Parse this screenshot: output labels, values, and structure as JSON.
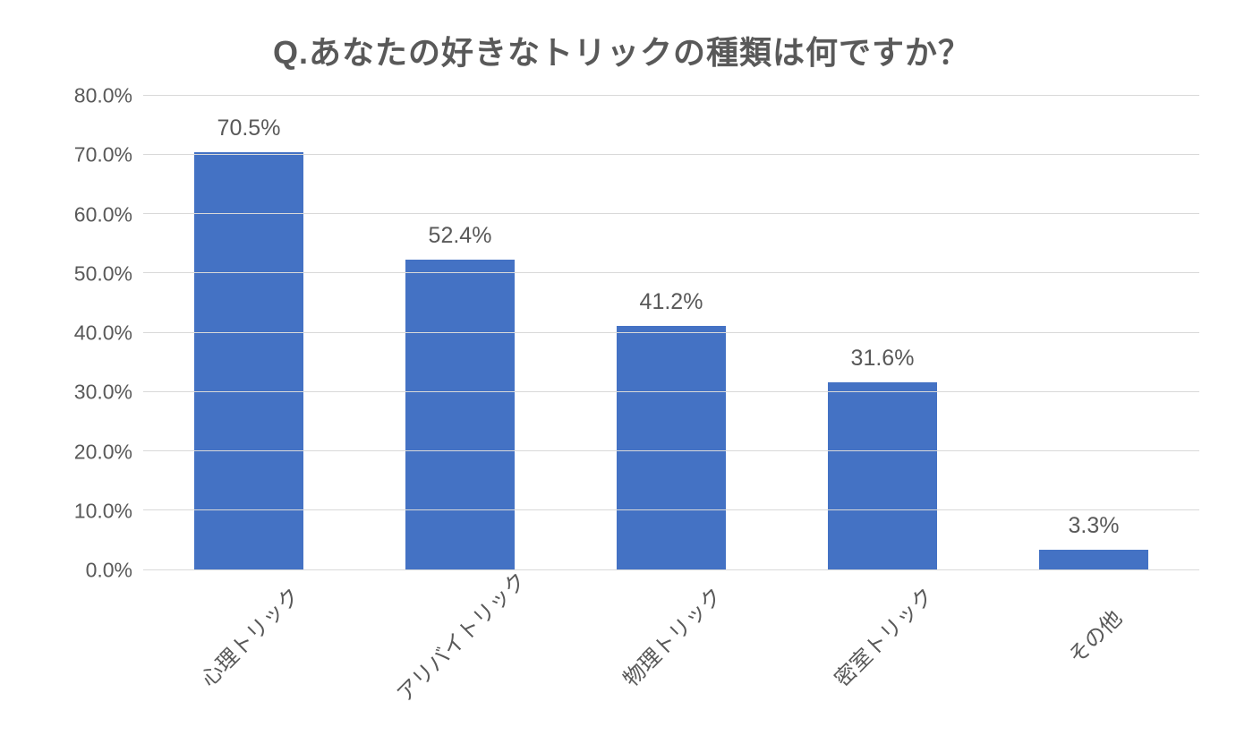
{
  "chart": {
    "type": "bar",
    "title": "Q.あなたの好きなトリックの種類は何ですか？",
    "title_fontsize": 36,
    "title_color": "#595959",
    "categories": [
      "心理トリック",
      "アリバイトリック",
      "物理トリック",
      "密室トリック",
      "その他"
    ],
    "values": [
      70.5,
      52.4,
      41.2,
      31.6,
      3.3
    ],
    "value_labels": [
      "70.5%",
      "52.4%",
      "41.2%",
      "31.6%",
      "3.3%"
    ],
    "bar_color": "#4472c4",
    "ylim": [
      0,
      80
    ],
    "ytick_step": 10,
    "yticks": [
      "0.0%",
      "10.0%",
      "20.0%",
      "30.0%",
      "40.0%",
      "50.0%",
      "60.0%",
      "70.0%",
      "80.0%"
    ],
    "grid_color": "#d9d9d9",
    "background_color": "#ffffff",
    "axis_label_color": "#595959",
    "axis_label_fontsize": 23,
    "value_label_fontsize": 25,
    "x_label_fontsize": 24,
    "x_label_rotation": -45,
    "bar_width_ratio": 0.52
  }
}
